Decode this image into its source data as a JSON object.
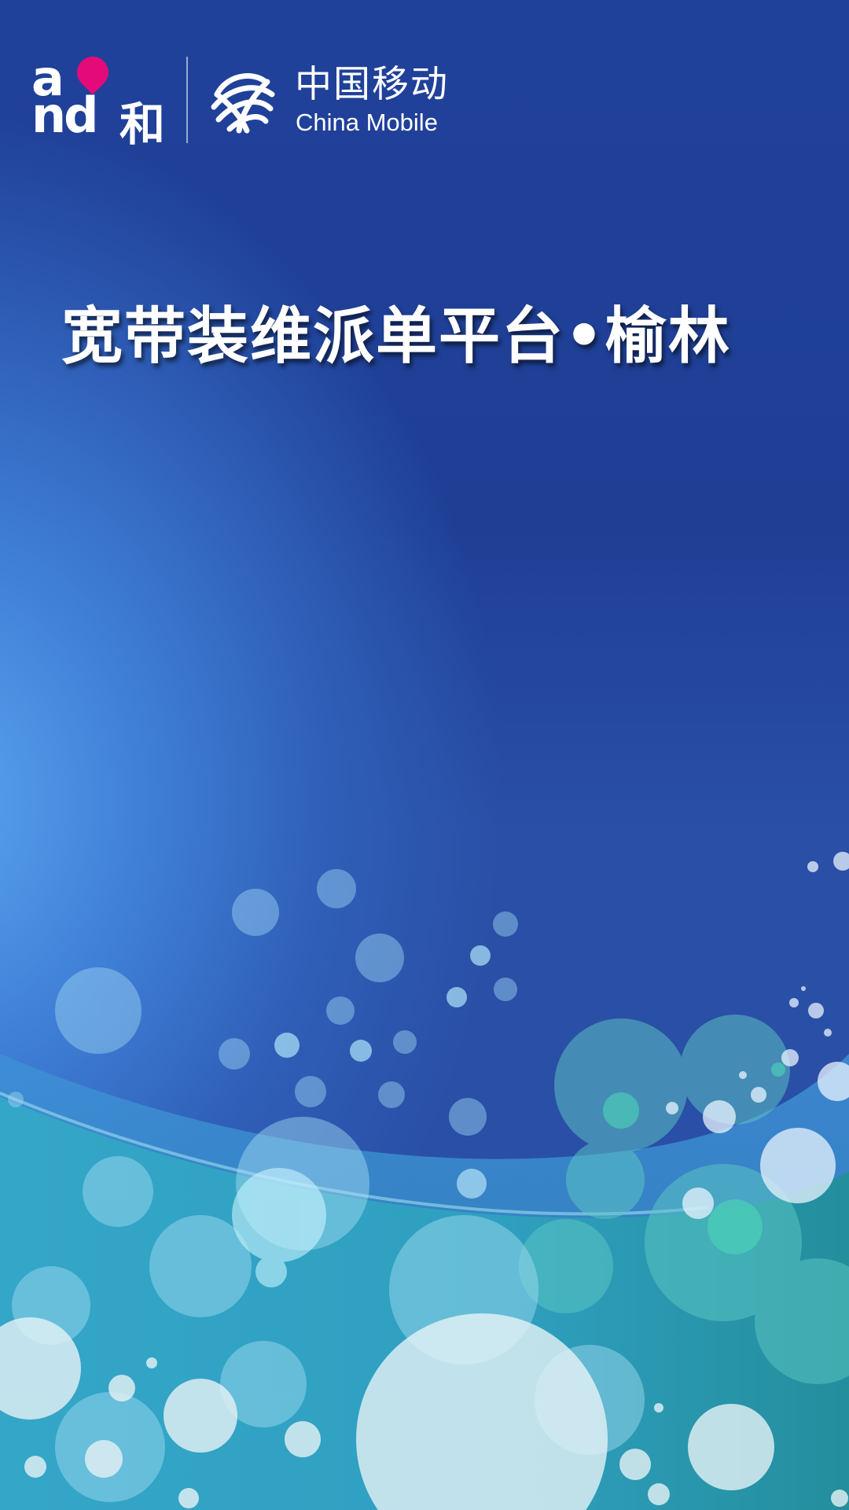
{
  "header": {
    "and_logo": {
      "text_line1": "a",
      "text_line2": "nd",
      "chinese": "和"
    },
    "carrier": {
      "name_cn": "中国移动",
      "name_en": "China Mobile"
    }
  },
  "main": {
    "title": "宽带装维派单平台•榆林"
  },
  "colors": {
    "background_top": "#1f3f95",
    "background_glow": "#5aa4f0",
    "wave_teal": "#2fa7c4",
    "and_pin": "#e40a7a",
    "text": "#ffffff"
  },
  "icons": {
    "and_pin": "location-pin-icon",
    "carrier_mark": "china-mobile-logo-icon"
  }
}
